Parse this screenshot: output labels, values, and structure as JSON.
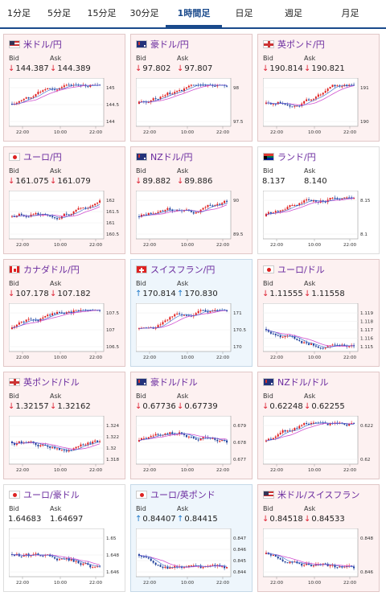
{
  "tabs": [
    {
      "label": "1分足",
      "active": false
    },
    {
      "label": "5分足",
      "active": false
    },
    {
      "label": "15分足",
      "active": false
    },
    {
      "label": "30分足",
      "active": false
    },
    {
      "label": "1時間足",
      "active": true
    },
    {
      "label": "日足",
      "active": false
    },
    {
      "label": "週足",
      "active": false
    },
    {
      "label": "月足",
      "active": false
    }
  ],
  "labels": {
    "bid": "Bid",
    "ask": "Ask"
  },
  "time_ticks": [
    "22:00",
    "10:00",
    "22:00"
  ],
  "colors": {
    "down_bg": "#fdf1f1",
    "up_bg": "#eef6fc",
    "accent": "#1a4a8c",
    "pair_text": "#6a2a9e",
    "candle_up": "#e02020",
    "candle_down": "#1d3f99",
    "ma1": "#d050d0",
    "ma2": "#3366cc"
  },
  "cards": [
    {
      "pair": "米ドル/円",
      "flag": "us",
      "dir": "down",
      "bid": "144.387",
      "ask": "144.389",
      "yticks": [
        "145",
        "144.5",
        "144"
      ],
      "trend": "up"
    },
    {
      "pair": "豪ドル/円",
      "flag": "au",
      "dir": "down",
      "bid": "97.802",
      "ask": "97.807",
      "yticks": [
        "98",
        "97.5"
      ],
      "trend": "up"
    },
    {
      "pair": "英ポンド/円",
      "flag": "gb",
      "dir": "down",
      "bid": "190.814",
      "ask": "190.821",
      "yticks": [
        "191",
        "190"
      ],
      "trend": "up"
    },
    {
      "pair": "ユーロ/円",
      "flag": "eu",
      "dir": "down",
      "bid": "161.075",
      "ask": "161.079",
      "yticks": [
        "162",
        "161.5",
        "161",
        "160.5"
      ],
      "trend": "up"
    },
    {
      "pair": "NZドル/円",
      "flag": "nz",
      "dir": "down",
      "bid": "89.882",
      "ask": "89.886",
      "yticks": [
        "90",
        "89.5"
      ],
      "trend": "up"
    },
    {
      "pair": "ランド/円",
      "flag": "za",
      "dir": "none",
      "bid": "8.137",
      "ask": "8.140",
      "yticks": [
        "8.15",
        "8.1"
      ],
      "trend": "up"
    },
    {
      "pair": "カナダドル/円",
      "flag": "ca",
      "dir": "down",
      "bid": "107.178",
      "ask": "107.182",
      "yticks": [
        "107.5",
        "107",
        "106.5"
      ],
      "trend": "up"
    },
    {
      "pair": "スイスフラン/円",
      "flag": "ch",
      "dir": "up",
      "bid": "170.814",
      "ask": "170.830",
      "yticks": [
        "171",
        "170.5",
        "170"
      ],
      "trend": "up"
    },
    {
      "pair": "ユーロ/ドル",
      "flag": "eu",
      "dir": "down",
      "bid": "1.11555",
      "ask": "1.11558",
      "yticks": [
        "1.119",
        "1.118",
        "1.117",
        "1.116",
        "1.115"
      ],
      "trend": "down"
    },
    {
      "pair": "英ポンド/ドル",
      "flag": "gb",
      "dir": "down",
      "bid": "1.32157",
      "ask": "1.32162",
      "yticks": [
        "1.324",
        "1.322",
        "1.32",
        "1.318"
      ],
      "trend": "flat"
    },
    {
      "pair": "豪ドル/ドル",
      "flag": "au",
      "dir": "down",
      "bid": "0.67736",
      "ask": "0.67739",
      "yticks": [
        "0.679",
        "0.678",
        "0.677"
      ],
      "trend": "flat"
    },
    {
      "pair": "NZドル/ドル",
      "flag": "nz",
      "dir": "down",
      "bid": "0.62248",
      "ask": "0.62255",
      "yticks": [
        "0.622",
        "0.62"
      ],
      "trend": "up"
    },
    {
      "pair": "ユーロ/豪ドル",
      "flag": "eu",
      "dir": "none",
      "bid": "1.64683",
      "ask": "1.64697",
      "yticks": [
        "1.65",
        "1.648",
        "1.646"
      ],
      "trend": "down"
    },
    {
      "pair": "ユーロ/英ポンド",
      "flag": "eu",
      "dir": "up",
      "bid": "0.84407",
      "ask": "0.84415",
      "yticks": [
        "0.847",
        "0.846",
        "0.845",
        "0.844"
      ],
      "trend": "down"
    },
    {
      "pair": "米ドル/スイスフラン",
      "flag": "us",
      "dir": "down",
      "bid": "0.84518",
      "ask": "0.84533",
      "yticks": [
        "0.848",
        "0.846"
      ],
      "trend": "down"
    }
  ]
}
